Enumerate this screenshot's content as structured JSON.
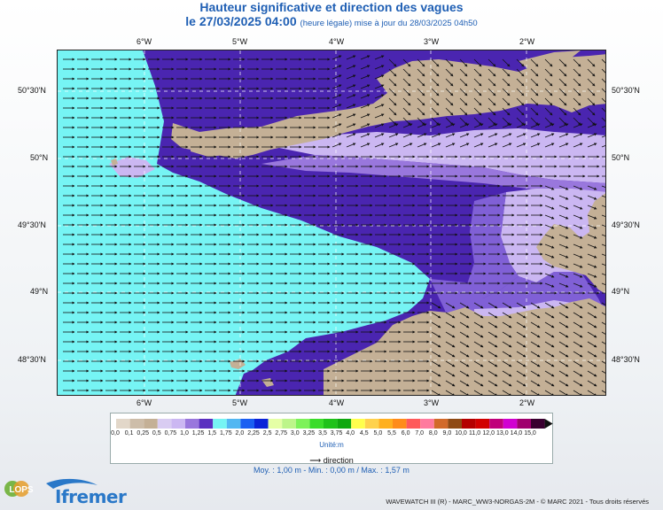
{
  "title": "Hauteur significative et direction des vagues",
  "subtitle": {
    "date": "le 27/03/2025 04:00",
    "update": "(heure légale) mise à jour du 28/03/2025 04h50"
  },
  "map": {
    "lon_ticks": [
      "6°W",
      "5°W",
      "4°W",
      "3°W",
      "2°W"
    ],
    "lat_ticks": [
      "50°30'N",
      "50°N",
      "49°30'N",
      "49°N",
      "48°30'N"
    ],
    "colors": {
      "land": "#c4b096",
      "wave_0_75_1_0": "#cbb7f2",
      "wave_1_0_1_25": "#9977dd",
      "wave_1_25_1_5": "#8060d6",
      "wave_deep": "#4a25b0",
      "wave_1_5_1_75": "#76f4f4",
      "arrows": "#111111"
    }
  },
  "legend": {
    "values": [
      "0,0",
      "0,1",
      "0,25",
      "0,5",
      "0,75",
      "1,0",
      "1,25",
      "1,5",
      "1,75",
      "2,0",
      "2,25",
      "2,5",
      "2,75",
      "3,0",
      "3,25",
      "3,5",
      "3,75",
      "4,0",
      "4,5",
      "5,0",
      "5,5",
      "6,0",
      "7,0",
      "8,0",
      "9,0",
      "10,0",
      "11,0",
      "12,0",
      "13,0",
      "14,0",
      "15,0"
    ],
    "colors": [
      "#e2d7c9",
      "#cdbda9",
      "#c4b096",
      "#d9ccf2",
      "#cbb7f2",
      "#9977dd",
      "#5a2fc0",
      "#76f4f4",
      "#52b7f2",
      "#1a5ff2",
      "#0a24d8",
      "#e5ffa6",
      "#bdf58a",
      "#7df25a",
      "#3adc2a",
      "#1fc21a",
      "#0fa80f",
      "#ffff4d",
      "#ffd24d",
      "#ffb01f",
      "#ff8c1a",
      "#ff5a5a",
      "#ff7a9e",
      "#d26a2a",
      "#8f4a14",
      "#b40000",
      "#d10000",
      "#c0007a",
      "#d100d1",
      "#a0006e",
      "#3a0030"
    ],
    "unit": "Unité:m",
    "direction_label": "direction",
    "stats": "Moy. : 1,00 m   -   Min. : 0,00 m / Max. : 1,57 m"
  },
  "footer": "WAVEWATCH III (R) - MARC_WW3-NORGAS-2M - © MARC 2021 - Tous droits réservés",
  "logos": {
    "lops": "LOPS",
    "ifremer": "Ifremer"
  }
}
